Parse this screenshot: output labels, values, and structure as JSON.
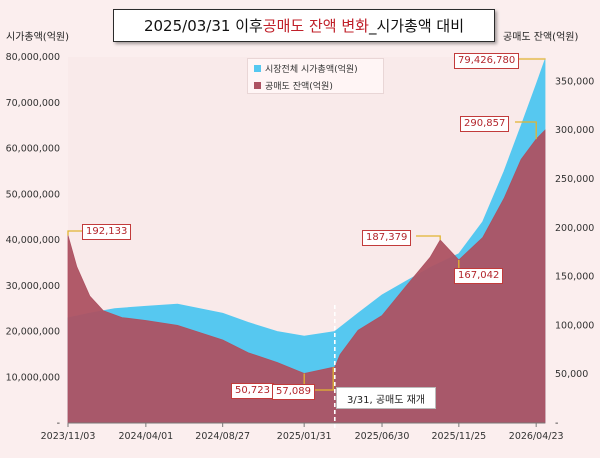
{
  "title": {
    "prefix": "2025/03/31 이후 ",
    "highlight": "공매도 잔액 변화",
    "suffix": "_시가총액 대비"
  },
  "chart_data": {
    "type": "area",
    "x_ticks": [
      "2023/11/03",
      "2024/04/01",
      "2024/08/27",
      "2025/01/31",
      "2025/06/30",
      "2025/11/25",
      "2026/04/23"
    ],
    "left_axis": {
      "label": "시가총액(억원)",
      "range": [
        0,
        80000000
      ],
      "ticks": [
        "-",
        "10,000,000",
        "20,000,000",
        "30,000,000",
        "40,000,000",
        "50,000,000",
        "60,000,000",
        "70,000,000",
        "80,000,000"
      ]
    },
    "right_axis": {
      "label": "공매도 잔액(억원)",
      "range": [
        0,
        375000
      ],
      "ticks": [
        "-",
        "50,000",
        "100,000",
        "150,000",
        "200,000",
        "250,000",
        "300,000",
        "350,000"
      ]
    },
    "grid": false,
    "legend_position": "top-center",
    "series": [
      {
        "name": "시장전체 시가총액(억원)",
        "axis": "left",
        "color": "#56c8f0",
        "points": [
          [
            "2023/11/03",
            23000000
          ],
          [
            "2023/12/15",
            24000000
          ],
          [
            "2024/02/01",
            25000000
          ],
          [
            "2024/04/01",
            25500000
          ],
          [
            "2024/06/01",
            26000000
          ],
          [
            "2024/08/27",
            24000000
          ],
          [
            "2024/10/15",
            22000000
          ],
          [
            "2024/12/10",
            20000000
          ],
          [
            "2025/01/31",
            19000000
          ],
          [
            "2025/03/31",
            20000000
          ],
          [
            "2025/05/15",
            24000000
          ],
          [
            "2025/06/30",
            28000000
          ],
          [
            "2025/08/15",
            31000000
          ],
          [
            "2025/10/01",
            34000000
          ],
          [
            "2025/11/25",
            37000000
          ],
          [
            "2026/01/10",
            44000000
          ],
          [
            "2026/02/20",
            55000000
          ],
          [
            "2026/03/25",
            65000000
          ],
          [
            "2026/04/23",
            74000000
          ],
          [
            "2026/05/10",
            79426780
          ]
        ]
      },
      {
        "name": "공매도 잔액(억원)",
        "axis": "right",
        "color": "#ad5262",
        "points": [
          [
            "2023/11/03",
            192133
          ],
          [
            "2023/11/20",
            160000
          ],
          [
            "2023/12/15",
            130000
          ],
          [
            "2024/01/10",
            115000
          ],
          [
            "2024/02/15",
            108000
          ],
          [
            "2024/04/01",
            105000
          ],
          [
            "2024/06/01",
            100000
          ],
          [
            "2024/08/27",
            85000
          ],
          [
            "2024/10/15",
            72000
          ],
          [
            "2024/12/10",
            62000
          ],
          [
            "2025/01/31",
            50723
          ],
          [
            "2025/03/28",
            57089
          ],
          [
            "2025/03/31",
            57089
          ],
          [
            "2025/04/10",
            70000
          ],
          [
            "2025/05/15",
            95000
          ],
          [
            "2025/06/30",
            110000
          ],
          [
            "2025/08/15",
            140000
          ],
          [
            "2025/10/01",
            170000
          ],
          [
            "2025/10/20",
            187379
          ],
          [
            "2025/11/25",
            167042
          ],
          [
            "2026/01/10",
            190000
          ],
          [
            "2026/02/20",
            230000
          ],
          [
            "2026/03/25",
            270000
          ],
          [
            "2026/04/23",
            290857
          ],
          [
            "2026/05/10",
            300000
          ]
        ]
      }
    ],
    "annotations": [
      {
        "label": "192,133",
        "date": "2023/11/03",
        "series": "공매도 잔액(억원)"
      },
      {
        "label": "50,723",
        "date": "2025/01/31",
        "series": "공매도 잔액(억원)"
      },
      {
        "label": "57,089",
        "date": "2025/03/28",
        "series": "공매도 잔액(억원)"
      },
      {
        "label": "187,379",
        "date": "2025/10/20",
        "series": "공매도 잔액(억원)"
      },
      {
        "label": "167,042",
        "date": "2025/11/25",
        "series": "공매도 잔액(억원)"
      },
      {
        "label": "290,857",
        "date": "2026/04/23",
        "series": "공매도 잔액(억원)"
      },
      {
        "label": "79,426,780",
        "date": "2026/05/10",
        "series": "시장전체 시가총액(억원)"
      }
    ],
    "event_marker": {
      "date": "2025/03/31",
      "label": "3/31, 공매도 재개"
    }
  }
}
